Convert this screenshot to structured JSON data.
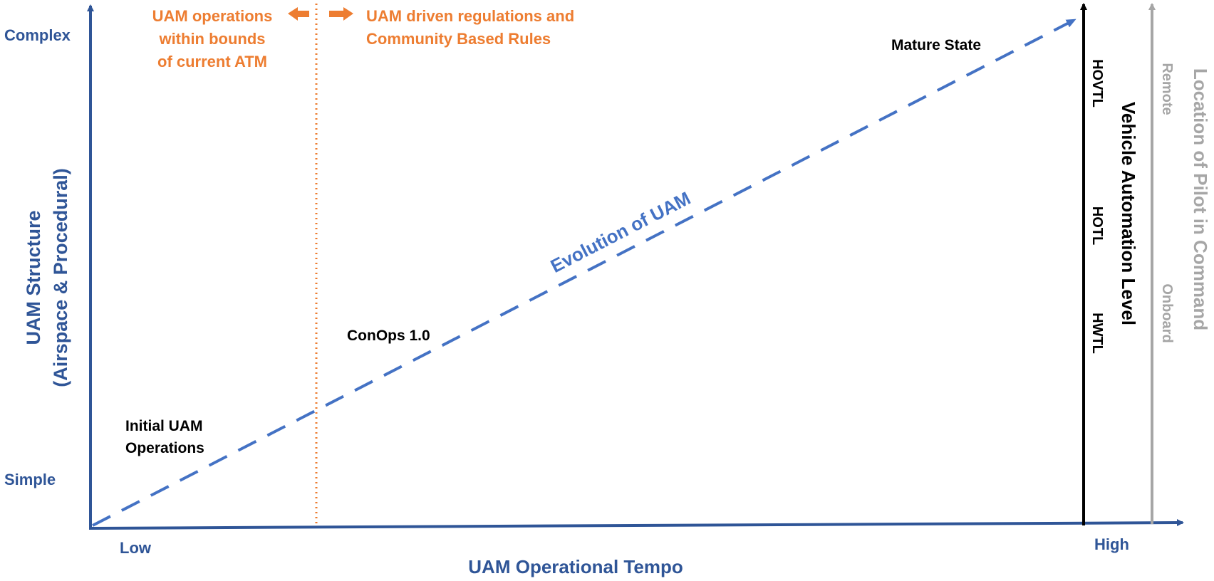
{
  "colors": {
    "blue": "#2F5597",
    "dash_blue": "#4472C4",
    "orange": "#ED7D31",
    "black": "#000000",
    "gray": "#A6A6A6"
  },
  "y_axis": {
    "title_line1": "UAM Structure",
    "title_line2": "(Airspace & Procedural)",
    "top_label": "Complex",
    "bottom_label": "Simple"
  },
  "x_axis": {
    "title": "UAM Operational Tempo",
    "left_label": "Low",
    "right_label": "High"
  },
  "boundary": {
    "left_text": [
      "UAM operations",
      "within bounds",
      "of current ATM"
    ],
    "right_text": [
      "UAM driven regulations and",
      "Community Based Rules"
    ]
  },
  "evolution": {
    "label": "Evolution of  UAM",
    "milestones": {
      "initial": [
        "Initial UAM",
        "Operations"
      ],
      "conops": "ConOps 1.0",
      "mature": "Mature State"
    }
  },
  "automation": {
    "title": "Vehicle Automation Level",
    "levels": [
      "HOVTL",
      "HOTL",
      "HWTL"
    ]
  },
  "pilot": {
    "title": "Location of Pilot in Command",
    "levels": [
      "Remote",
      "Onboard"
    ]
  }
}
